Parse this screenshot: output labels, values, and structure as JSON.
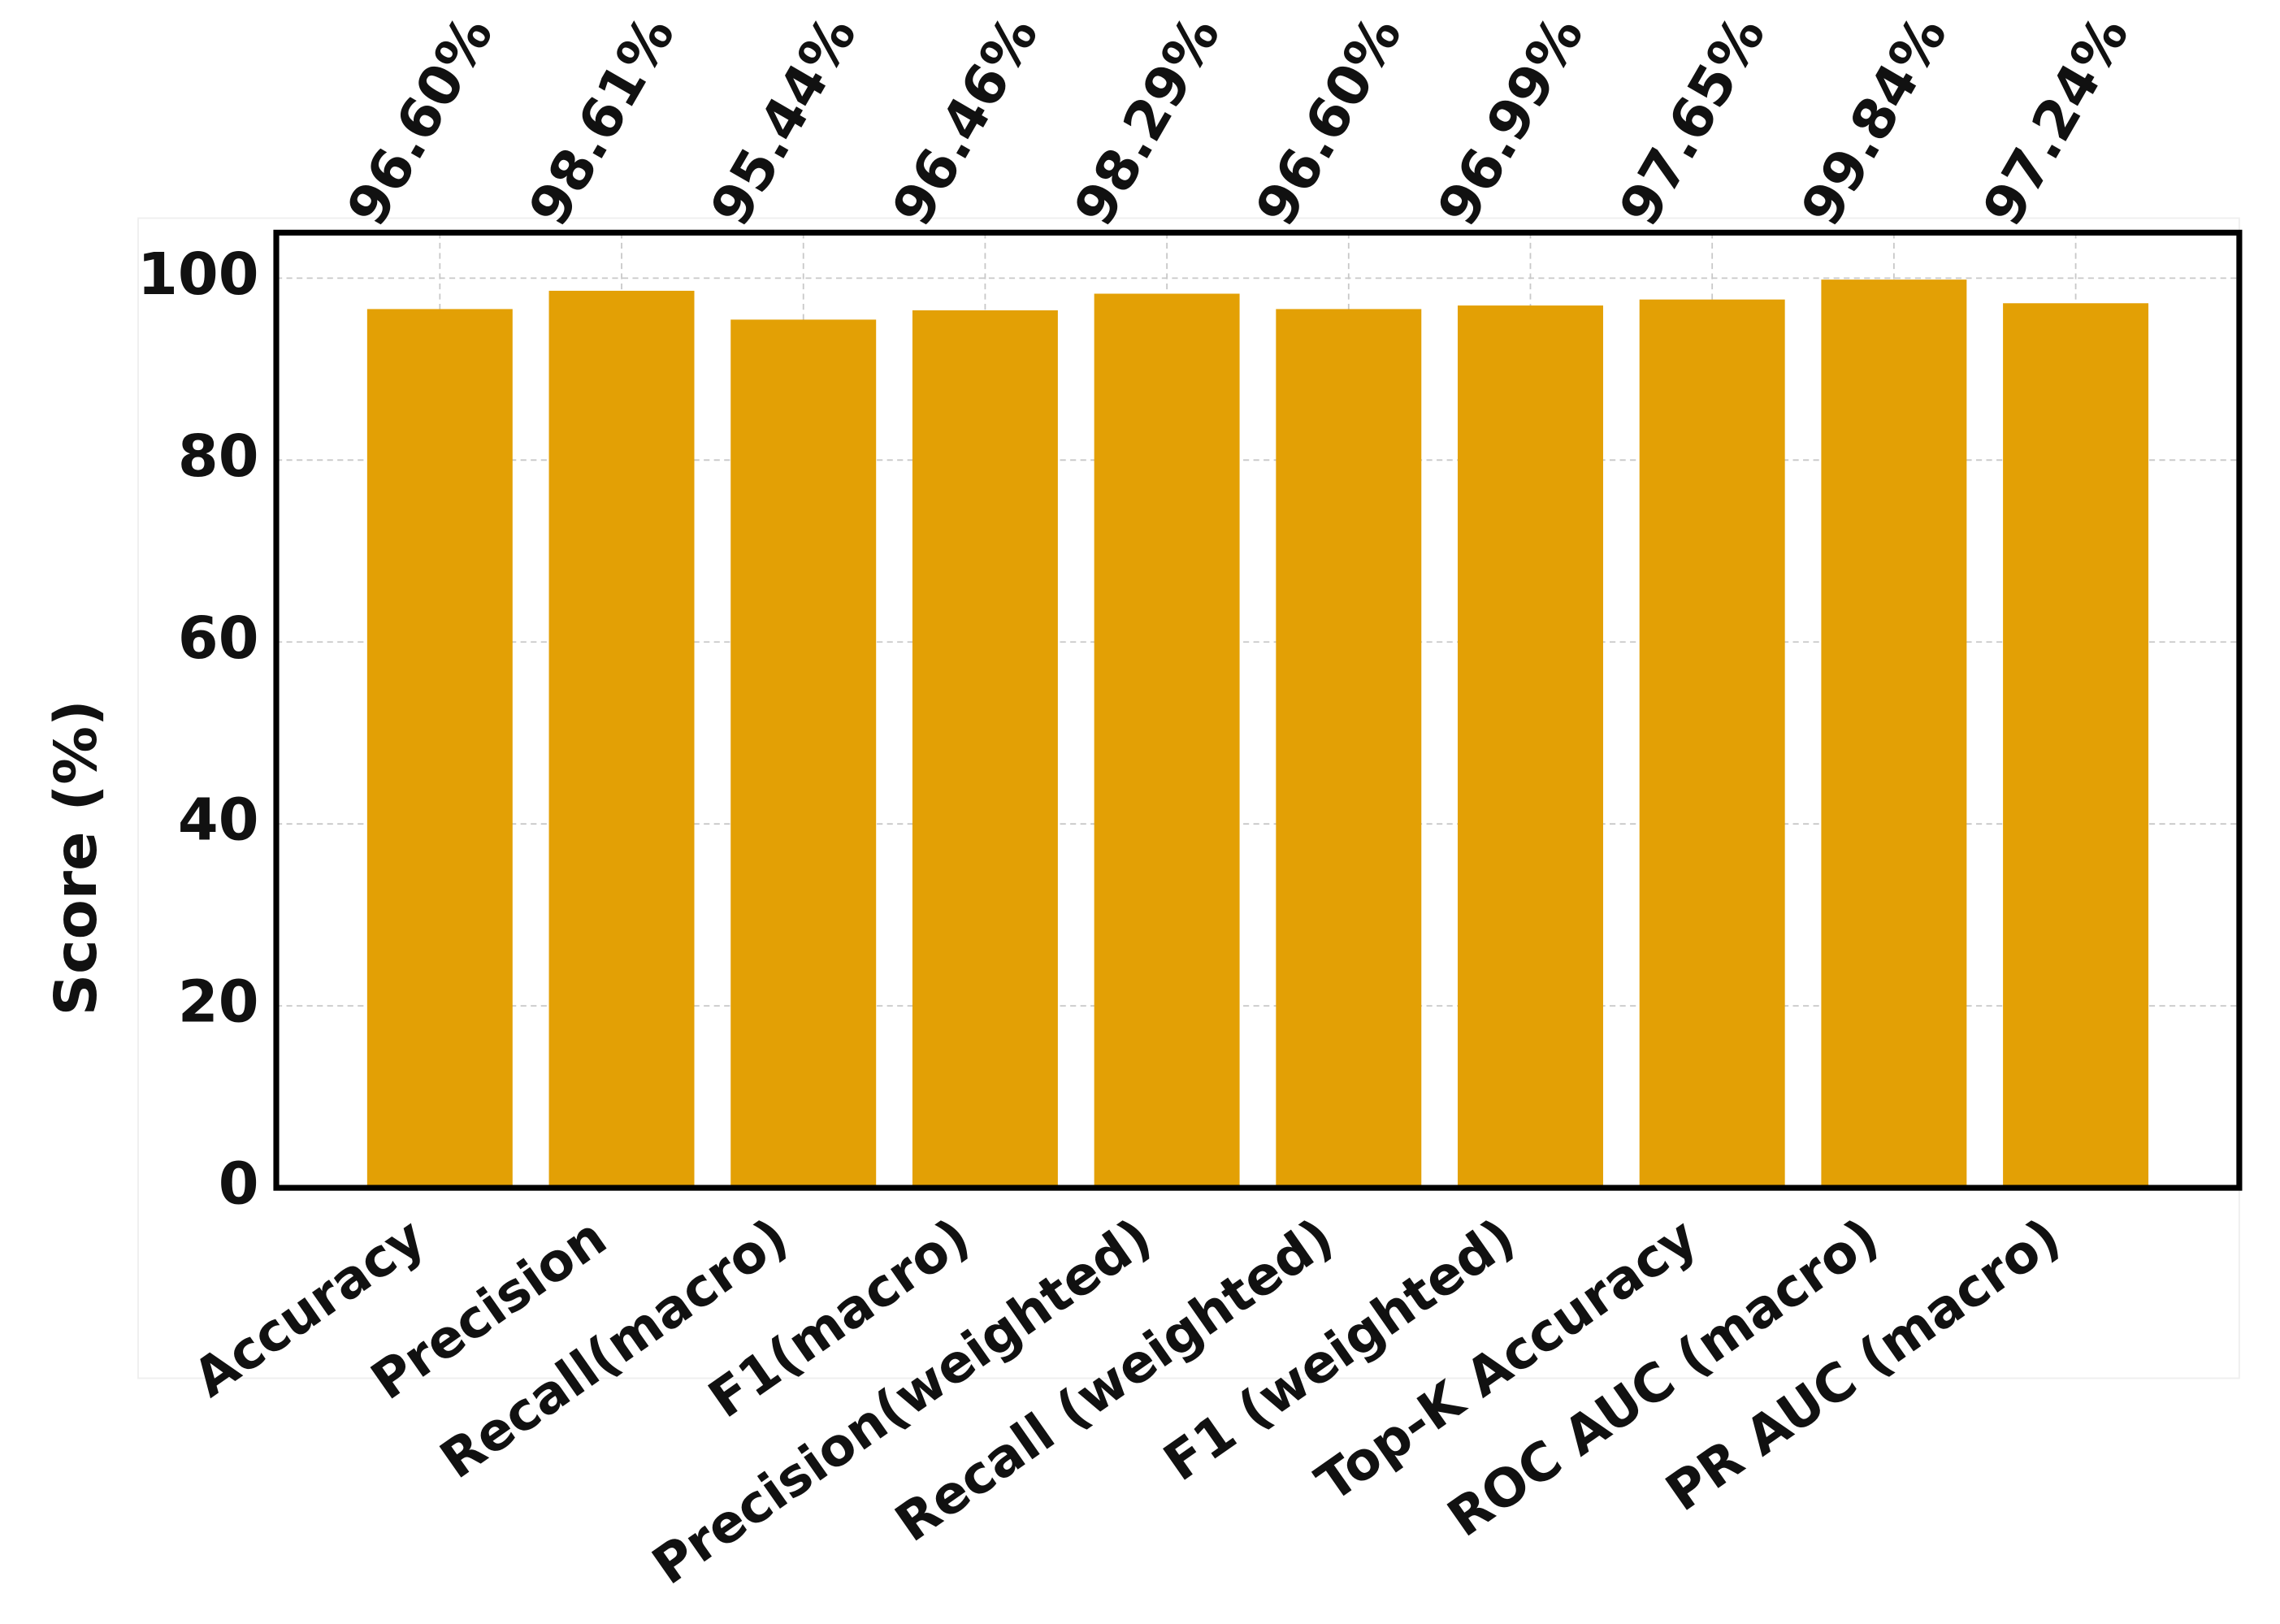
{
  "chart_data": {
    "type": "bar",
    "y_label": "Score (%)",
    "categories": [
      "Accuracy",
      "Precision",
      "Recall(macro)",
      "F1(macro)",
      "Precision(weighted)",
      "Recall (weighted)",
      "F1 (weighted)",
      "Top-K Accuracy",
      "ROC AUC (macro)",
      "PR AUC (macro)"
    ],
    "values": [
      96.6,
      98.61,
      95.44,
      96.46,
      98.29,
      96.6,
      96.99,
      97.65,
      99.84,
      97.24
    ],
    "value_labels": [
      "96.60%",
      "98.61%",
      "95.44%",
      "96.46%",
      "98.29%",
      "96.60%",
      "96.99%",
      "97.65%",
      "99.84%",
      "97.24%"
    ],
    "color": "#e3a005",
    "ylim": [
      0,
      105
    ],
    "yticks": [
      0,
      20,
      40,
      60,
      80,
      100
    ],
    "grid": true
  }
}
